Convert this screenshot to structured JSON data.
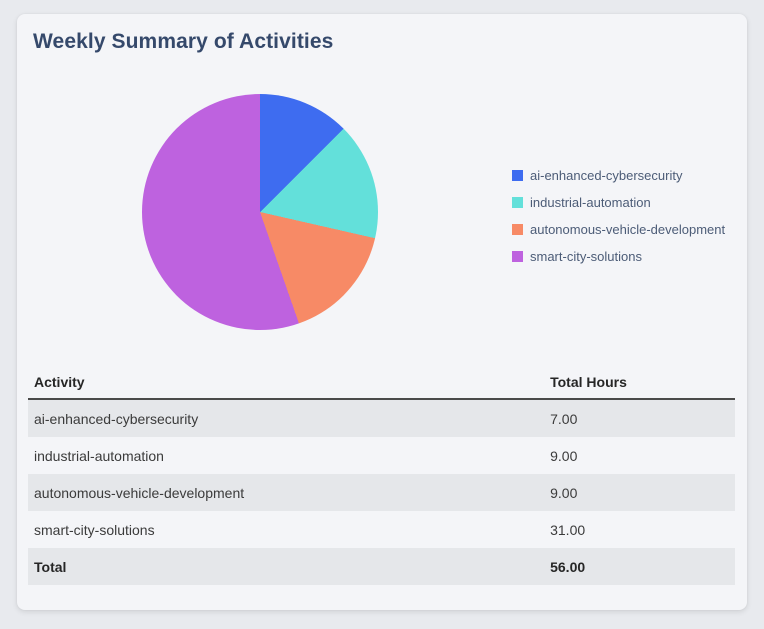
{
  "card": {
    "title": "Weekly Summary of Activities"
  },
  "chart_data": {
    "type": "pie",
    "title": "Weekly Summary of Activities",
    "labels": [
      "ai-enhanced-cybersecurity",
      "industrial-automation",
      "autonomous-vehicle-development",
      "smart-city-solutions"
    ],
    "values": [
      7,
      9,
      9,
      31
    ],
    "colors": [
      "#3e6cf0",
      "#63e0da",
      "#f78a66",
      "#be62df"
    ],
    "start_angle": "top",
    "direction": "clockwise",
    "legend_position": "right",
    "total": 56
  },
  "table": {
    "columns": [
      "Activity",
      "Total Hours"
    ],
    "rows": [
      {
        "activity": "ai-enhanced-cybersecurity",
        "total_hours": "7.00"
      },
      {
        "activity": "industrial-automation",
        "total_hours": "9.00"
      },
      {
        "activity": "autonomous-vehicle-development",
        "total_hours": "9.00"
      },
      {
        "activity": "smart-city-solutions",
        "total_hours": "31.00"
      }
    ],
    "total_row": {
      "activity": "Total",
      "total_hours": "56.00"
    }
  }
}
